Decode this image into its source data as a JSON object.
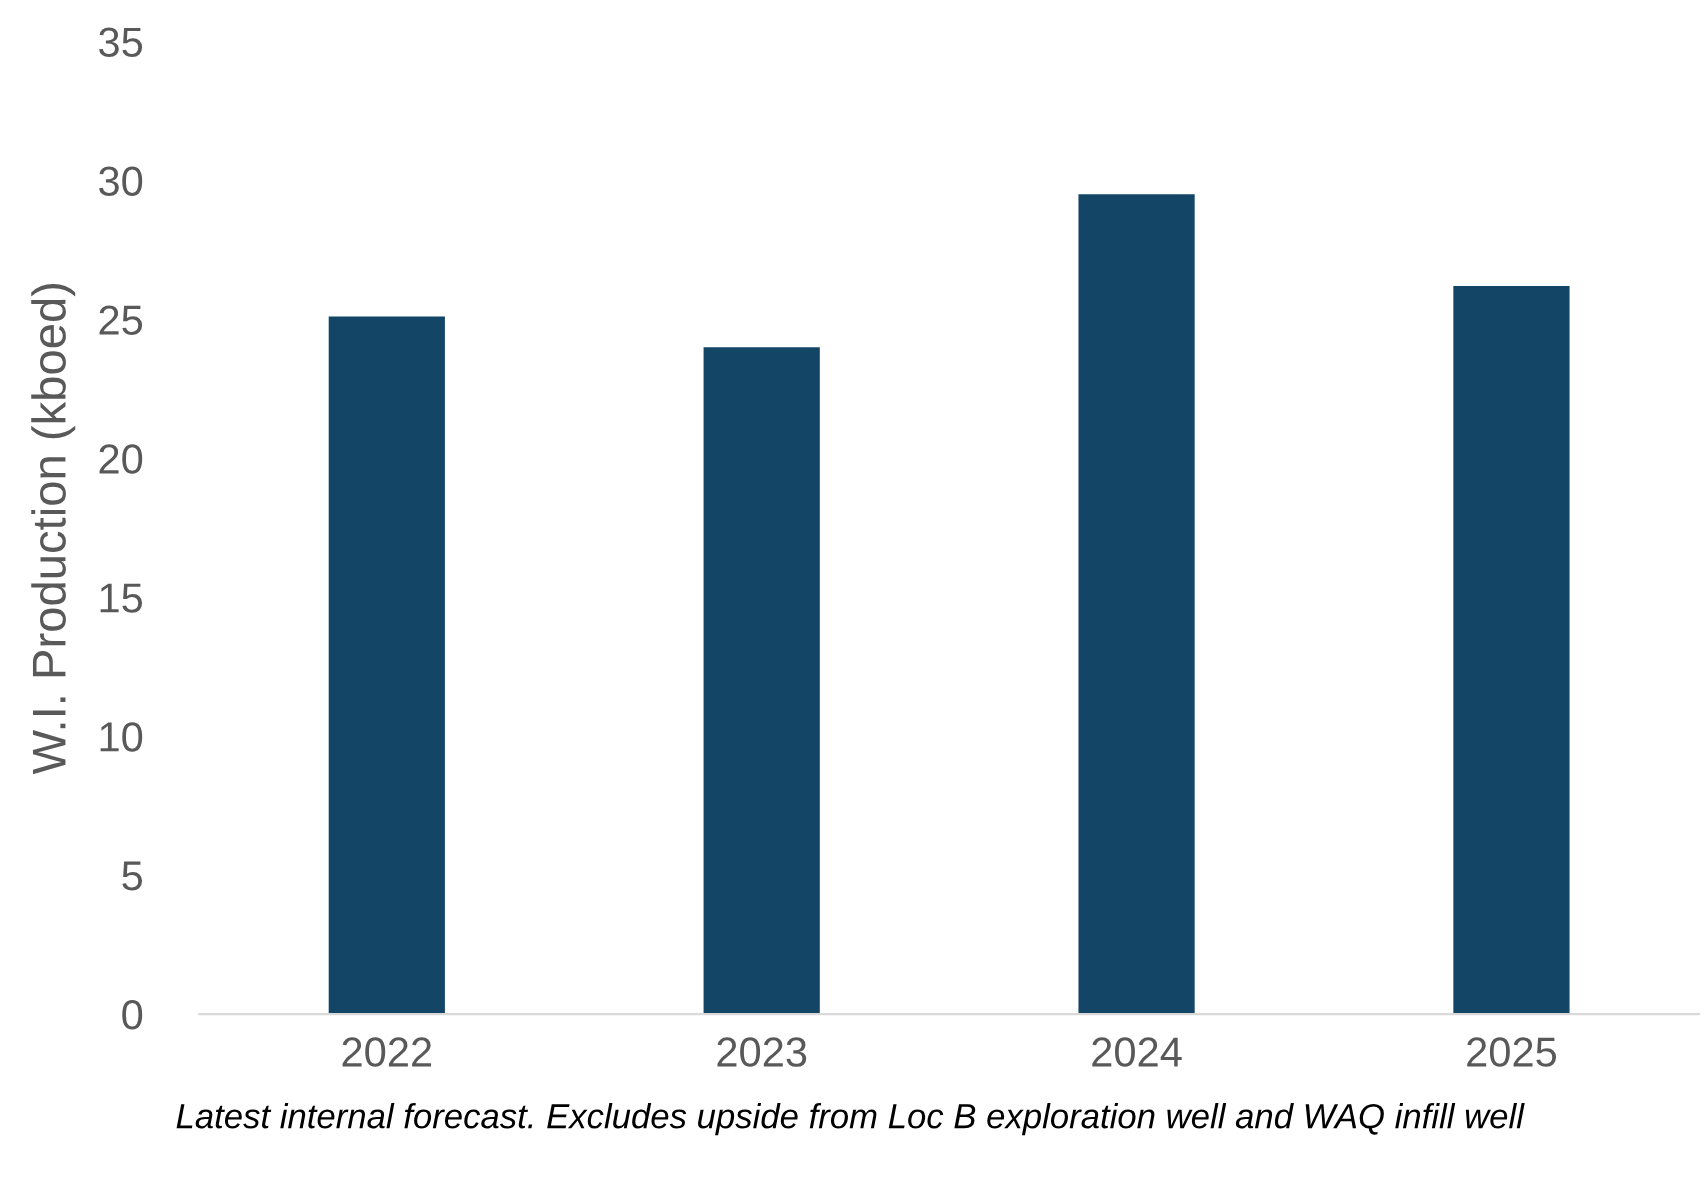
{
  "chart_data": {
    "type": "bar",
    "categories": [
      "2022",
      "2023",
      "2024",
      "2025"
    ],
    "values": [
      25.1,
      24.0,
      29.5,
      26.2
    ],
    "color": "#134566",
    "ylabel": "W.I. Production (kboed)",
    "ylim": [
      0,
      35
    ],
    "yticks": [
      0,
      5,
      10,
      15,
      20,
      25,
      30,
      35
    ],
    "grid": false,
    "legend": false,
    "annotations": [
      "Latest internal forecast. Excludes upside from Loc B exploration well and WAQ infill well"
    ]
  }
}
